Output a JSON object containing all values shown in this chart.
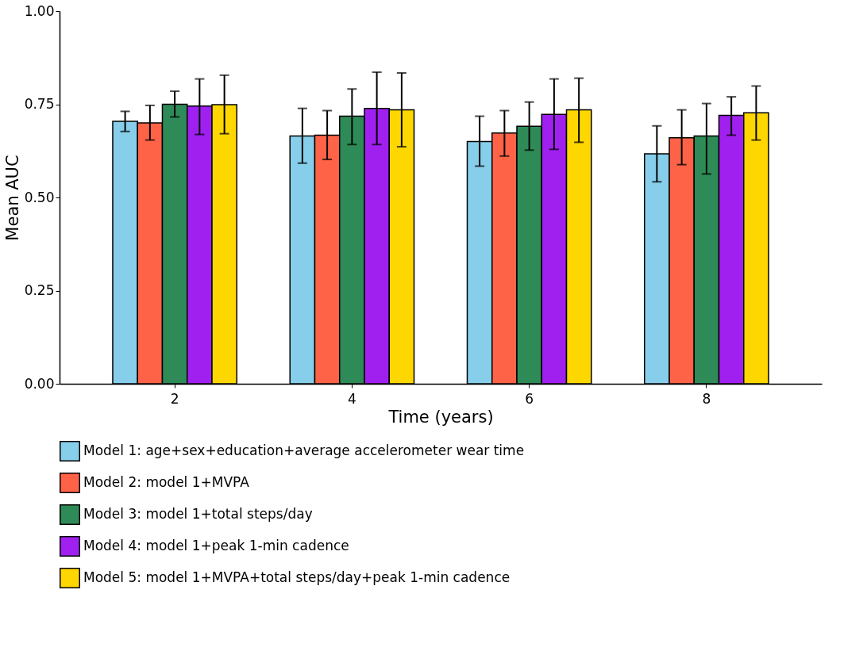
{
  "chart_data": {
    "type": "bar",
    "xlabel": "Time (years)",
    "ylabel": "Mean AUC",
    "categories": [
      "2",
      "4",
      "6",
      "8"
    ],
    "series": [
      {
        "name": "Model 1: age+sex+education+average accelerometer wear time",
        "color": "#87ceeb",
        "values": [
          0.704,
          0.665,
          0.65,
          0.617
        ],
        "errors": [
          [
            0.677,
            0.731
          ],
          [
            0.592,
            0.739
          ],
          [
            0.584,
            0.718
          ],
          [
            0.542,
            0.692
          ]
        ]
      },
      {
        "name": "Model 2: model 1+MVPA",
        "color": "#ff6347",
        "values": [
          0.7,
          0.667,
          0.673,
          0.66
        ],
        "errors": [
          [
            0.654,
            0.747
          ],
          [
            0.602,
            0.733
          ],
          [
            0.611,
            0.733
          ],
          [
            0.588,
            0.735
          ]
        ]
      },
      {
        "name": "Model 3: model 1+total steps/day",
        "color": "#2e8b57",
        "values": [
          0.75,
          0.718,
          0.691,
          0.665
        ],
        "errors": [
          [
            0.716,
            0.785
          ],
          [
            0.642,
            0.791
          ],
          [
            0.627,
            0.756
          ],
          [
            0.563,
            0.752
          ]
        ]
      },
      {
        "name": "Model 4: model 1+peak 1-min cadence",
        "color": "#a020f0",
        "values": [
          0.745,
          0.739,
          0.723,
          0.72
        ],
        "errors": [
          [
            0.669,
            0.818
          ],
          [
            0.642,
            0.836
          ],
          [
            0.629,
            0.818
          ],
          [
            0.667,
            0.77
          ]
        ]
      },
      {
        "name": "Model 5: model 1+MVPA+total steps/day+peak 1-min cadence",
        "color": "#ffd700",
        "values": [
          0.749,
          0.735,
          0.735,
          0.727
        ],
        "errors": [
          [
            0.671,
            0.828
          ],
          [
            0.636,
            0.834
          ],
          [
            0.648,
            0.82
          ],
          [
            0.654,
            0.799
          ]
        ]
      }
    ],
    "ylim": [
      0,
      1
    ],
    "yticks": [
      {
        "value": 0,
        "label": "0.00"
      },
      {
        "value": 0.25,
        "label": "0.25"
      },
      {
        "value": 0.5,
        "label": "0.50"
      },
      {
        "value": 0.75,
        "label": "0.75"
      },
      {
        "value": 1,
        "label": "1.00"
      }
    ],
    "grid": false,
    "legend": "bottom"
  }
}
